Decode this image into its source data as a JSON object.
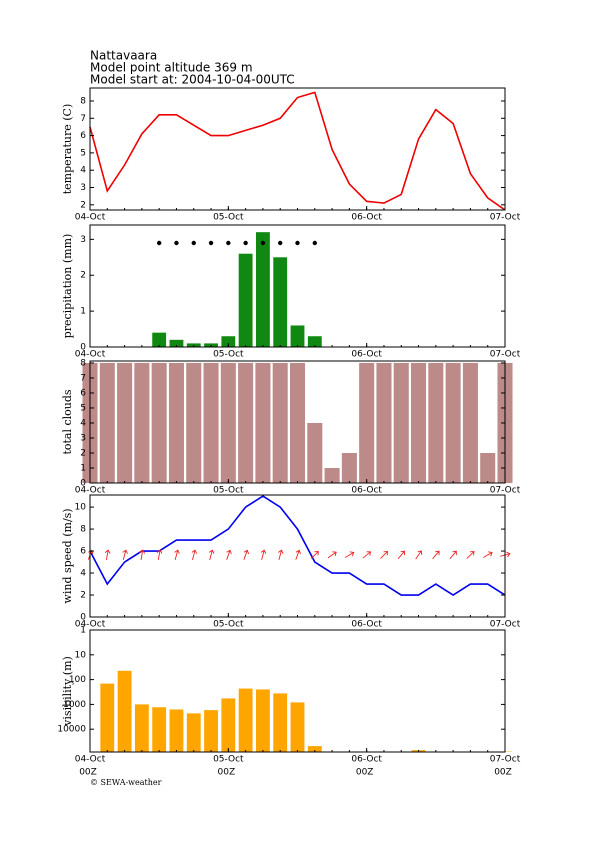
{
  "header": {
    "location": "Nattavaara",
    "altitude": "Model point altitude  369 m",
    "start": "Model start at: 2004-10-04-00UTC"
  },
  "footer": "© SEWA-weather",
  "chart_data": [
    {
      "type": "line",
      "y_label": "temperature (C)",
      "color": "#ee0000",
      "x": [
        0,
        3,
        6,
        9,
        12,
        15,
        18,
        21,
        24,
        27,
        30,
        33,
        36,
        39,
        42,
        45,
        48,
        51,
        54,
        57,
        60,
        63,
        66,
        69,
        72
      ],
      "values": [
        6.5,
        2.8,
        4.3,
        6.1,
        7.2,
        7.2,
        6.6,
        6.0,
        6.0,
        6.3,
        6.6,
        7.0,
        8.2,
        8.5,
        5.2,
        3.2,
        2.2,
        2.1,
        2.6,
        5.8,
        7.5,
        6.7,
        3.8,
        2.4,
        1.7
      ],
      "xlim": [
        0,
        72
      ],
      "xticks": [
        {
          "value": 0,
          "label": "04-Oct"
        },
        {
          "value": 24,
          "label": "05-Oct"
        },
        {
          "value": 48,
          "label": "06-Oct"
        },
        {
          "value": 72,
          "label": "07-Oct"
        }
      ],
      "ylim": [
        1.7,
        8.75
      ],
      "yticks": [
        2,
        3,
        4,
        5,
        6,
        7,
        8
      ]
    },
    {
      "type": "bar",
      "y_label": "precipitation (mm)",
      "color": "#118811",
      "x": [
        12,
        15,
        18,
        21,
        24,
        27,
        30,
        33,
        36,
        39
      ],
      "values": [
        0.4,
        0.2,
        0.1,
        0.1,
        0.3,
        2.6,
        3.2,
        2.5,
        0.6,
        0.3
      ],
      "xlim": [
        0,
        72
      ],
      "xticks": [
        {
          "value": 0,
          "label": "04-Oct"
        },
        {
          "value": 24,
          "label": "05-Oct"
        },
        {
          "value": 48,
          "label": "06-Oct"
        },
        {
          "value": 72,
          "label": "07-Oct"
        }
      ],
      "ylim": [
        0,
        3.4
      ],
      "yticks": [
        0,
        1,
        2,
        3
      ]
    },
    {
      "type": "bar",
      "y_label": "total clouds",
      "color": "#bc8a88",
      "x": [
        0,
        3,
        6,
        9,
        12,
        15,
        18,
        21,
        24,
        27,
        30,
        33,
        36,
        39,
        42,
        45,
        48,
        51,
        54,
        57,
        60,
        63,
        66,
        69,
        72
      ],
      "values": [
        8,
        8,
        8,
        8,
        8,
        8,
        8,
        8,
        8,
        8,
        8,
        8,
        8,
        4,
        1,
        2,
        8,
        8,
        8,
        8,
        8,
        8,
        8,
        2,
        8
      ],
      "xlim": [
        0,
        72
      ],
      "xticks": [
        {
          "value": 0,
          "label": "04-Oct"
        },
        {
          "value": 24,
          "label": "05-Oct"
        },
        {
          "value": 48,
          "label": "06-Oct"
        },
        {
          "value": 72,
          "label": "07-Oct"
        }
      ],
      "ylim": [
        0,
        8.13
      ],
      "yticks": [
        0,
        1,
        2,
        3,
        4,
        5,
        6,
        7,
        8
      ]
    },
    {
      "type": "line",
      "y_label": "wind speed (m/s)",
      "color": "#0000ee",
      "arrow_color": "#ee2222",
      "x": [
        0,
        3,
        6,
        9,
        12,
        15,
        18,
        21,
        24,
        27,
        30,
        33,
        36,
        39,
        42,
        45,
        48,
        51,
        54,
        57,
        60,
        63,
        66,
        69,
        72
      ],
      "values": [
        6,
        3,
        5,
        6,
        6,
        7,
        7,
        7,
        8,
        10,
        11,
        10,
        8,
        5,
        4,
        4,
        3,
        3,
        2,
        2,
        3,
        2,
        3,
        3,
        2
      ],
      "directions": [
        20,
        10,
        15,
        10,
        10,
        15,
        15,
        15,
        20,
        20,
        15,
        15,
        20,
        45,
        55,
        60,
        50,
        45,
        40,
        35,
        40,
        40,
        45,
        60,
        75
      ],
      "xlim": [
        0,
        72
      ],
      "xticks": [
        {
          "value": 0,
          "label": "04-Oct"
        },
        {
          "value": 24,
          "label": "05-Oct"
        },
        {
          "value": 48,
          "label": "06-Oct"
        },
        {
          "value": 72,
          "label": "07-Oct"
        }
      ],
      "ylim": [
        0,
        11.1
      ],
      "yticks": [
        0,
        2,
        4,
        6,
        8,
        10
      ]
    },
    {
      "type": "bar",
      "y_label": "visibility (m)",
      "color": "#ffa500",
      "log": true,
      "inverted": true,
      "x": [
        3,
        6,
        9,
        12,
        15,
        18,
        21,
        24,
        27,
        30,
        33,
        36,
        39,
        42,
        45,
        48,
        51,
        54,
        57,
        60,
        63,
        66,
        69,
        72
      ],
      "values": [
        145,
        44,
        1000,
        1300,
        1600,
        2300,
        1700,
        575,
        230,
        250,
        360,
        830,
        48000,
        80000,
        80000,
        80000,
        80000,
        80000,
        70000,
        80000,
        80000,
        80000,
        80000,
        80000
      ],
      "xlim": [
        0,
        72
      ],
      "xticks": [
        {
          "value": 0,
          "label": "04-Oct"
        },
        {
          "value": 24,
          "label": "05-Oct"
        },
        {
          "value": 48,
          "label": "06-Oct"
        },
        {
          "value": 72,
          "label": "07-Oct"
        }
      ],
      "x_sublabels": [
        "00Z",
        "00Z",
        "00Z",
        "00Z"
      ],
      "ylim": [
        1,
        83000
      ],
      "yticks": [
        1,
        10,
        100,
        1000,
        10000
      ]
    }
  ]
}
